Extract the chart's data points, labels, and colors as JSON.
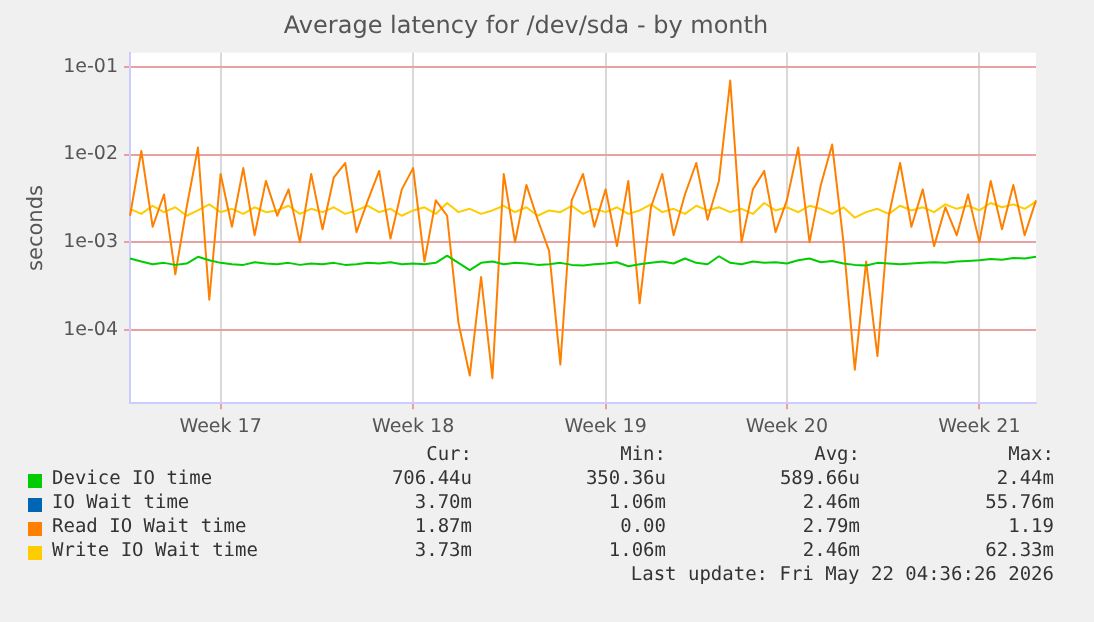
{
  "chart_data": {
    "type": "line",
    "title": "Average latency for /dev/sda - by month",
    "ylabel": "seconds",
    "log": "y",
    "grid": true,
    "legend": "bottom",
    "marker": "none",
    "line_style": "solid",
    "categories": [
      null,
      null,
      null,
      null,
      null,
      null,
      null,
      null,
      "Week 17",
      null,
      null,
      null,
      null,
      null,
      null,
      null,
      null,
      null,
      null,
      null,
      null,
      null,
      null,
      null,
      null,
      "Week 18",
      null,
      null,
      null,
      null,
      null,
      null,
      null,
      null,
      null,
      null,
      null,
      null,
      null,
      null,
      null,
      null,
      "Week 19",
      null,
      null,
      null,
      null,
      null,
      null,
      null,
      null,
      null,
      null,
      null,
      null,
      null,
      null,
      null,
      "Week 20",
      null,
      null,
      null,
      null,
      null,
      null,
      null,
      null,
      null,
      null,
      null,
      null,
      null,
      null,
      null,
      null,
      "Week 21",
      null,
      null,
      null,
      null,
      null
    ],
    "ylim": [
      1.45e-05,
      0.145
    ],
    "yticks": [
      {
        "value": 0.0001,
        "label": "1e-04"
      },
      {
        "value": 0.001,
        "label": "1e-03"
      },
      {
        "value": 0.01,
        "label": "1e-02"
      },
      {
        "value": 0.1,
        "label": "1e-01"
      }
    ],
    "series": [
      {
        "name": "Device IO time",
        "color": "#00cc00",
        "values": [
          0.00065,
          0.0006,
          0.00056,
          0.00058,
          0.00055,
          0.00057,
          0.00068,
          0.00062,
          0.00058,
          0.00056,
          0.00055,
          0.00059,
          0.00057,
          0.00056,
          0.00058,
          0.00055,
          0.00057,
          0.00056,
          0.00058,
          0.00055,
          0.00056,
          0.00058,
          0.00057,
          0.00059,
          0.00056,
          0.00057,
          0.00056,
          0.00058,
          0.0007,
          0.00058,
          0.00048,
          0.00058,
          0.0006,
          0.00056,
          0.00058,
          0.00057,
          0.00055,
          0.00056,
          0.00058,
          0.00055,
          0.00054,
          0.00056,
          0.00057,
          0.00059,
          0.00053,
          0.00056,
          0.00058,
          0.0006,
          0.00057,
          0.00065,
          0.00058,
          0.00056,
          0.00069,
          0.00058,
          0.00056,
          0.0006,
          0.00058,
          0.00059,
          0.00057,
          0.00062,
          0.00065,
          0.00059,
          0.00061,
          0.00057,
          0.00055,
          0.00054,
          0.00058,
          0.00057,
          0.00056,
          0.00057,
          0.00058,
          0.00059,
          0.00058,
          0.0006,
          0.00061,
          0.00062,
          0.00064,
          0.00063,
          0.00066,
          0.00065,
          0.00068
        ]
      },
      {
        "name": "IO Wait time",
        "color": "#0066b3",
        "values": [
          null,
          null,
          null,
          null,
          null,
          null,
          null,
          null,
          null,
          null,
          null,
          null,
          null,
          null,
          null,
          null,
          null,
          null,
          null,
          null,
          null,
          null,
          null,
          null,
          null,
          null,
          null,
          null,
          null,
          null,
          null,
          null,
          null,
          null,
          null,
          null,
          null,
          null,
          null,
          null,
          null,
          null,
          null,
          null,
          null,
          null,
          null,
          null,
          null,
          null,
          null,
          null,
          null,
          null,
          null,
          null,
          null,
          null,
          null,
          null,
          null,
          null,
          null,
          null,
          null,
          null,
          null,
          null,
          null,
          null,
          null,
          null,
          null,
          null,
          null,
          null,
          null,
          null,
          null,
          null,
          null
        ]
      },
      {
        "name": "Read IO Wait time",
        "color": "#ff8000",
        "values": [
          0.002,
          0.011,
          0.0015,
          0.0035,
          0.00043,
          0.0025,
          0.012,
          0.00022,
          0.006,
          0.0015,
          0.007,
          0.0012,
          0.005,
          0.002,
          0.004,
          0.001,
          0.006,
          0.0014,
          0.0055,
          0.008,
          0.0013,
          0.003,
          0.0065,
          0.0011,
          0.004,
          0.007,
          0.0006,
          0.003,
          0.002,
          0.00012,
          3e-05,
          0.0004,
          2.8e-05,
          0.006,
          0.001,
          0.0045,
          0.0018,
          0.0008,
          4e-05,
          0.003,
          0.006,
          0.0015,
          0.004,
          0.0009,
          0.005,
          0.0002,
          0.0025,
          0.006,
          0.0012,
          0.0035,
          0.008,
          0.0018,
          0.005,
          0.07,
          0.001,
          0.004,
          0.0065,
          0.0013,
          0.003,
          0.012,
          0.001,
          0.0045,
          0.013,
          0.001,
          3.5e-05,
          0.0006,
          5e-05,
          0.002,
          0.008,
          0.0015,
          0.004,
          0.0009,
          0.0025,
          0.0012,
          0.0035,
          0.001,
          0.005,
          0.0014,
          0.0045,
          0.0012,
          0.003
        ]
      },
      {
        "name": "Write IO Wait time",
        "color": "#ffcc00",
        "values": [
          0.0024,
          0.0021,
          0.0026,
          0.0022,
          0.0025,
          0.002,
          0.0023,
          0.0027,
          0.0022,
          0.0024,
          0.0021,
          0.0025,
          0.0022,
          0.0023,
          0.0026,
          0.0021,
          0.0024,
          0.0022,
          0.0025,
          0.0021,
          0.0023,
          0.0026,
          0.0022,
          0.0024,
          0.002,
          0.0023,
          0.0025,
          0.0021,
          0.0028,
          0.0022,
          0.0024,
          0.0021,
          0.0023,
          0.0026,
          0.0022,
          0.0025,
          0.002,
          0.0023,
          0.0022,
          0.0026,
          0.0021,
          0.0024,
          0.0022,
          0.0025,
          0.0021,
          0.0023,
          0.0027,
          0.0022,
          0.0024,
          0.0021,
          0.0026,
          0.0023,
          0.0025,
          0.0022,
          0.0024,
          0.0021,
          0.0028,
          0.0023,
          0.0025,
          0.0022,
          0.0026,
          0.0024,
          0.0021,
          0.0025,
          0.0019,
          0.0022,
          0.0024,
          0.0021,
          0.0026,
          0.0023,
          0.0025,
          0.0022,
          0.0027,
          0.0024,
          0.0026,
          0.0023,
          0.0028,
          0.0025,
          0.0027,
          0.0024,
          0.0029
        ]
      }
    ],
    "annotations": [
      "Cur:",
      "Min:",
      "Avg:",
      "Max:",
      "706.44u",
      "350.36u",
      "589.66u",
      "2.44m",
      "3.70m",
      "1.06m",
      "2.46m",
      "55.76m",
      "1.87m",
      "0.00",
      "2.79m",
      "1.19",
      "3.73m",
      "1.06m",
      "2.46m",
      "62.33m",
      "Last update: Fri May 22 04:36:26 2026"
    ]
  }
}
